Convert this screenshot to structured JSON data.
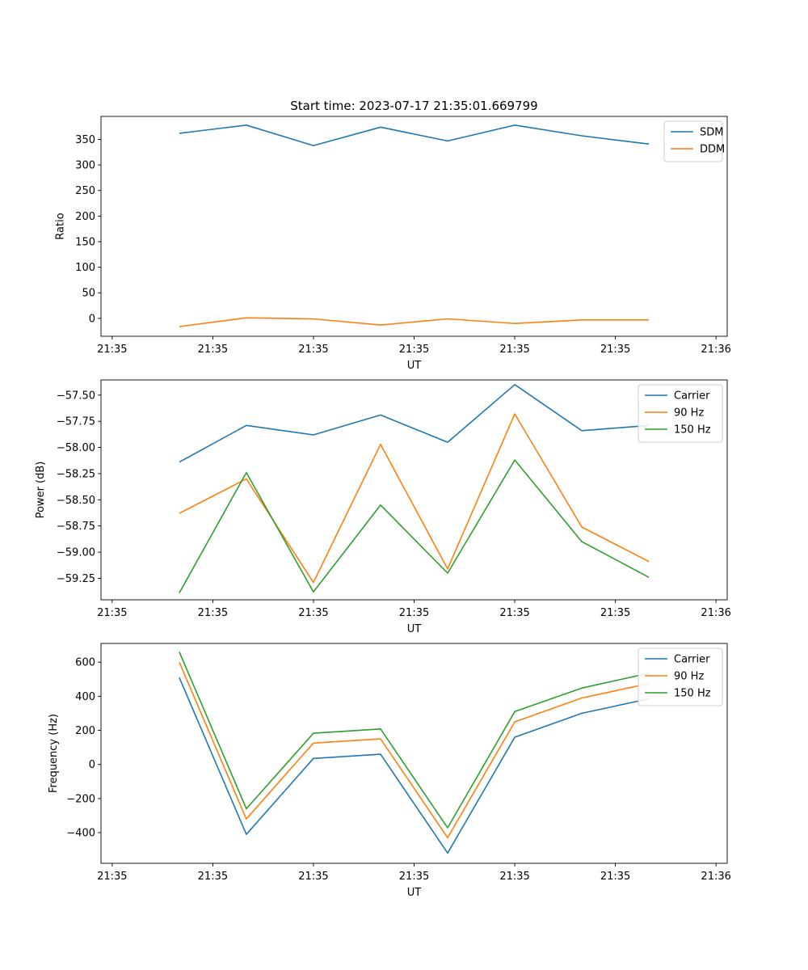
{
  "figure_title": "Start time: 2023-07-17 21:35:01.669799",
  "chart_data": [
    {
      "type": "line",
      "title": "Start time: 2023-07-17 21:35:01.669799",
      "xlabel": "UT",
      "ylabel": "Ratio",
      "x": [
        0.7,
        1.3,
        1.9,
        2.5,
        3.1,
        3.7,
        4.3,
        4.9
      ],
      "xlim": [
        0.0,
        5.6
      ],
      "xticks": [
        0.1,
        1.0,
        1.9,
        2.8,
        3.7,
        4.6,
        5.5
      ],
      "xtick_labels": [
        "21:35",
        "21:35",
        "21:35",
        "21:35",
        "21:35",
        "21:35",
        "21:36"
      ],
      "ylim": [
        -35,
        395
      ],
      "yticks": [
        0,
        50,
        100,
        150,
        200,
        250,
        300,
        350
      ],
      "ytick_labels": [
        "0",
        "50",
        "100",
        "150",
        "200",
        "250",
        "300",
        "350"
      ],
      "legend": "top-right",
      "series": [
        {
          "name": "SDM",
          "color": "#1f77b4",
          "values": [
            362,
            378,
            338,
            374,
            347,
            378,
            357,
            341
          ]
        },
        {
          "name": "DDM",
          "color": "#ff7f0e",
          "values": [
            -16,
            1,
            -1,
            -13,
            -1,
            -10,
            -3,
            -3
          ]
        }
      ]
    },
    {
      "type": "line",
      "xlabel": "UT",
      "ylabel": "Power (dB)",
      "x": [
        0.7,
        1.3,
        1.9,
        2.5,
        3.1,
        3.7,
        4.3,
        4.9
      ],
      "xlim": [
        0.0,
        5.6
      ],
      "xticks": [
        0.1,
        1.0,
        1.9,
        2.8,
        3.7,
        4.6,
        5.5
      ],
      "xtick_labels": [
        "21:35",
        "21:35",
        "21:35",
        "21:35",
        "21:35",
        "21:35",
        "21:36"
      ],
      "ylim": [
        -59.455,
        -57.355
      ],
      "yticks": [
        -59.25,
        -59.0,
        -58.75,
        -58.5,
        -58.25,
        -58.0,
        -57.75,
        -57.5
      ],
      "ytick_labels": [
        "−59.25",
        "−59.00",
        "−58.75",
        "−58.50",
        "−58.25",
        "−58.00",
        "−57.75",
        "−57.50"
      ],
      "legend": "top-right",
      "series": [
        {
          "name": "Carrier",
          "color": "#1f77b4",
          "values": [
            -58.14,
            -57.79,
            -57.88,
            -57.69,
            -57.95,
            -57.4,
            -57.84,
            -57.79
          ]
        },
        {
          "name": "90 Hz",
          "color": "#ff7f0e",
          "values": [
            -58.63,
            -58.3,
            -59.29,
            -57.97,
            -59.16,
            -57.68,
            -58.76,
            -59.09
          ]
        },
        {
          "name": "150 Hz",
          "color": "#2ca02c",
          "values": [
            -59.39,
            -58.24,
            -59.38,
            -58.55,
            -59.2,
            -58.12,
            -58.9,
            -59.24
          ]
        }
      ]
    },
    {
      "type": "line",
      "xlabel": "UT",
      "ylabel": "Frequency (Hz)",
      "x": [
        0.7,
        1.3,
        1.9,
        2.5,
        3.1,
        3.7,
        4.3,
        4.9
      ],
      "xlim": [
        0.0,
        5.6
      ],
      "xticks": [
        0.1,
        1.0,
        1.9,
        2.8,
        3.7,
        4.6,
        5.5
      ],
      "xtick_labels": [
        "21:35",
        "21:35",
        "21:35",
        "21:35",
        "21:35",
        "21:35",
        "21:36"
      ],
      "ylim": [
        -580,
        710
      ],
      "yticks": [
        -400,
        -200,
        0,
        200,
        400,
        600
      ],
      "ytick_labels": [
        "−400",
        "−200",
        "0",
        "200",
        "400",
        "600"
      ],
      "legend": "top-right",
      "series": [
        {
          "name": "Carrier",
          "color": "#1f77b4",
          "values": [
            510,
            -410,
            35,
            60,
            -520,
            160,
            300,
            385
          ]
        },
        {
          "name": "90 Hz",
          "color": "#ff7f0e",
          "values": [
            600,
            -320,
            125,
            150,
            -430,
            250,
            390,
            475
          ]
        },
        {
          "name": "150 Hz",
          "color": "#2ca02c",
          "values": [
            660,
            -260,
            183,
            208,
            -372,
            310,
            448,
            535
          ]
        }
      ]
    }
  ]
}
